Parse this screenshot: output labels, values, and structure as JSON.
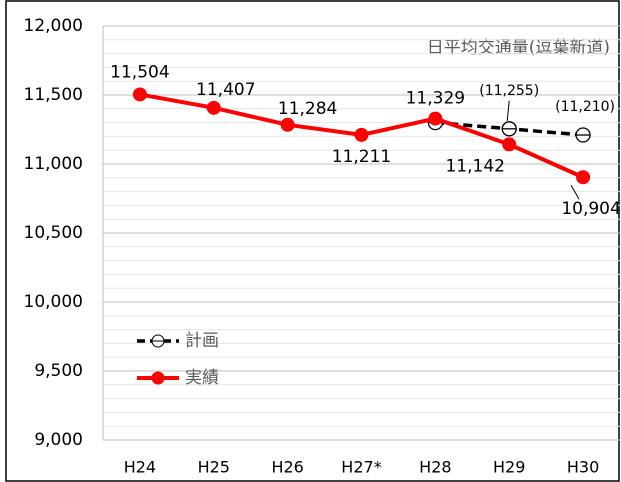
{
  "chart_data": {
    "type": "line",
    "annotation": "日平均交通量(逗葉新道)",
    "categories": [
      "H24",
      "H25",
      "H26",
      "H27*",
      "H28",
      "H29",
      "H30"
    ],
    "series": [
      {
        "name": "計画",
        "color": "#000000",
        "dashed": true,
        "marker": "hollow",
        "values": [
          null,
          null,
          null,
          null,
          11300,
          11255,
          11210
        ],
        "value_labels": [
          null,
          null,
          null,
          null,
          null,
          "(11,255)",
          "(11,210)"
        ]
      },
      {
        "name": "実績",
        "color": "#ff0000",
        "dashed": false,
        "marker": "filled",
        "values": [
          11504,
          11407,
          11284,
          11211,
          11329,
          11142,
          10904
        ],
        "value_labels": [
          "11,504",
          "11,407",
          "11,284",
          "11,211",
          "11,329",
          "11,142",
          "10,904"
        ]
      }
    ],
    "ylim": [
      9000,
      12000
    ],
    "yticks": [
      {
        "value": 9000,
        "label": "9,000"
      },
      {
        "value": 9500,
        "label": "9,500"
      },
      {
        "value": 10000,
        "label": "10,000"
      },
      {
        "value": 10500,
        "label": "10,500"
      },
      {
        "value": 11000,
        "label": "11,000"
      },
      {
        "value": 11500,
        "label": "11,500"
      },
      {
        "value": 12000,
        "label": "12,000"
      }
    ],
    "grid": true,
    "legend": "lower left"
  }
}
